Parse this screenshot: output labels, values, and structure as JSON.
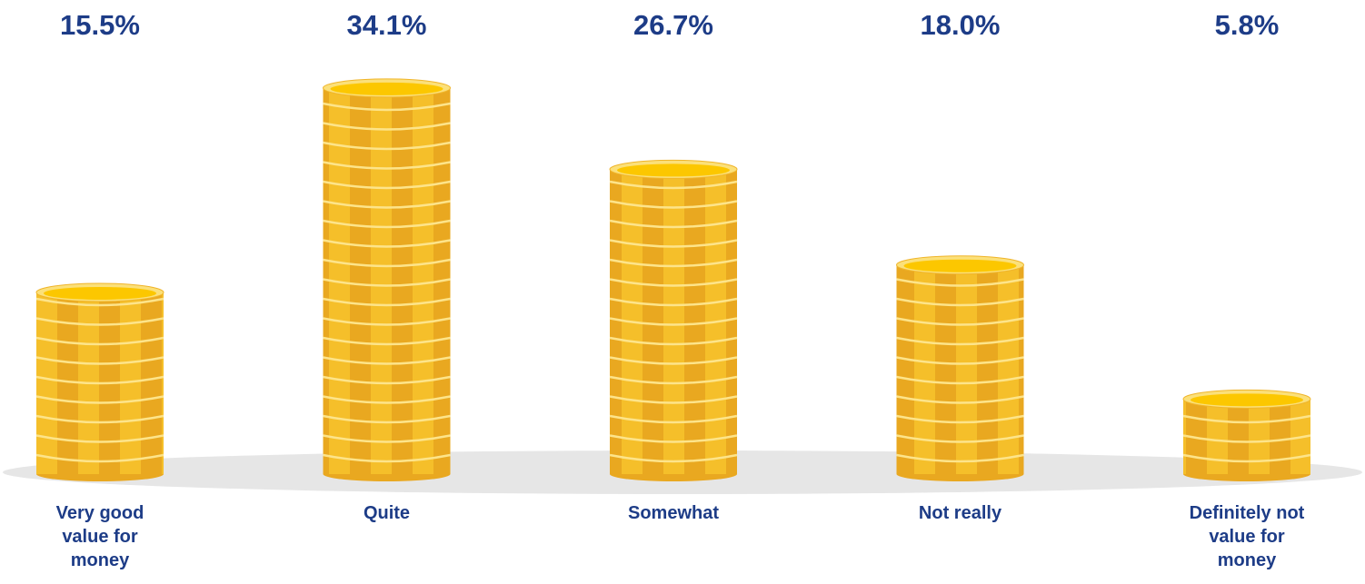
{
  "chart_data": {
    "type": "bar",
    "categories": [
      "Very good value for money",
      "Quite",
      "Somewhat",
      "Not really",
      "Definitely not value for money"
    ],
    "values": [
      15.5,
      34.1,
      26.7,
      18.0,
      5.8
    ],
    "value_labels": [
      "15.5%",
      "34.1%",
      "26.7%",
      "18.0%",
      "5.8%"
    ],
    "color": "#f2b21b"
  }
}
